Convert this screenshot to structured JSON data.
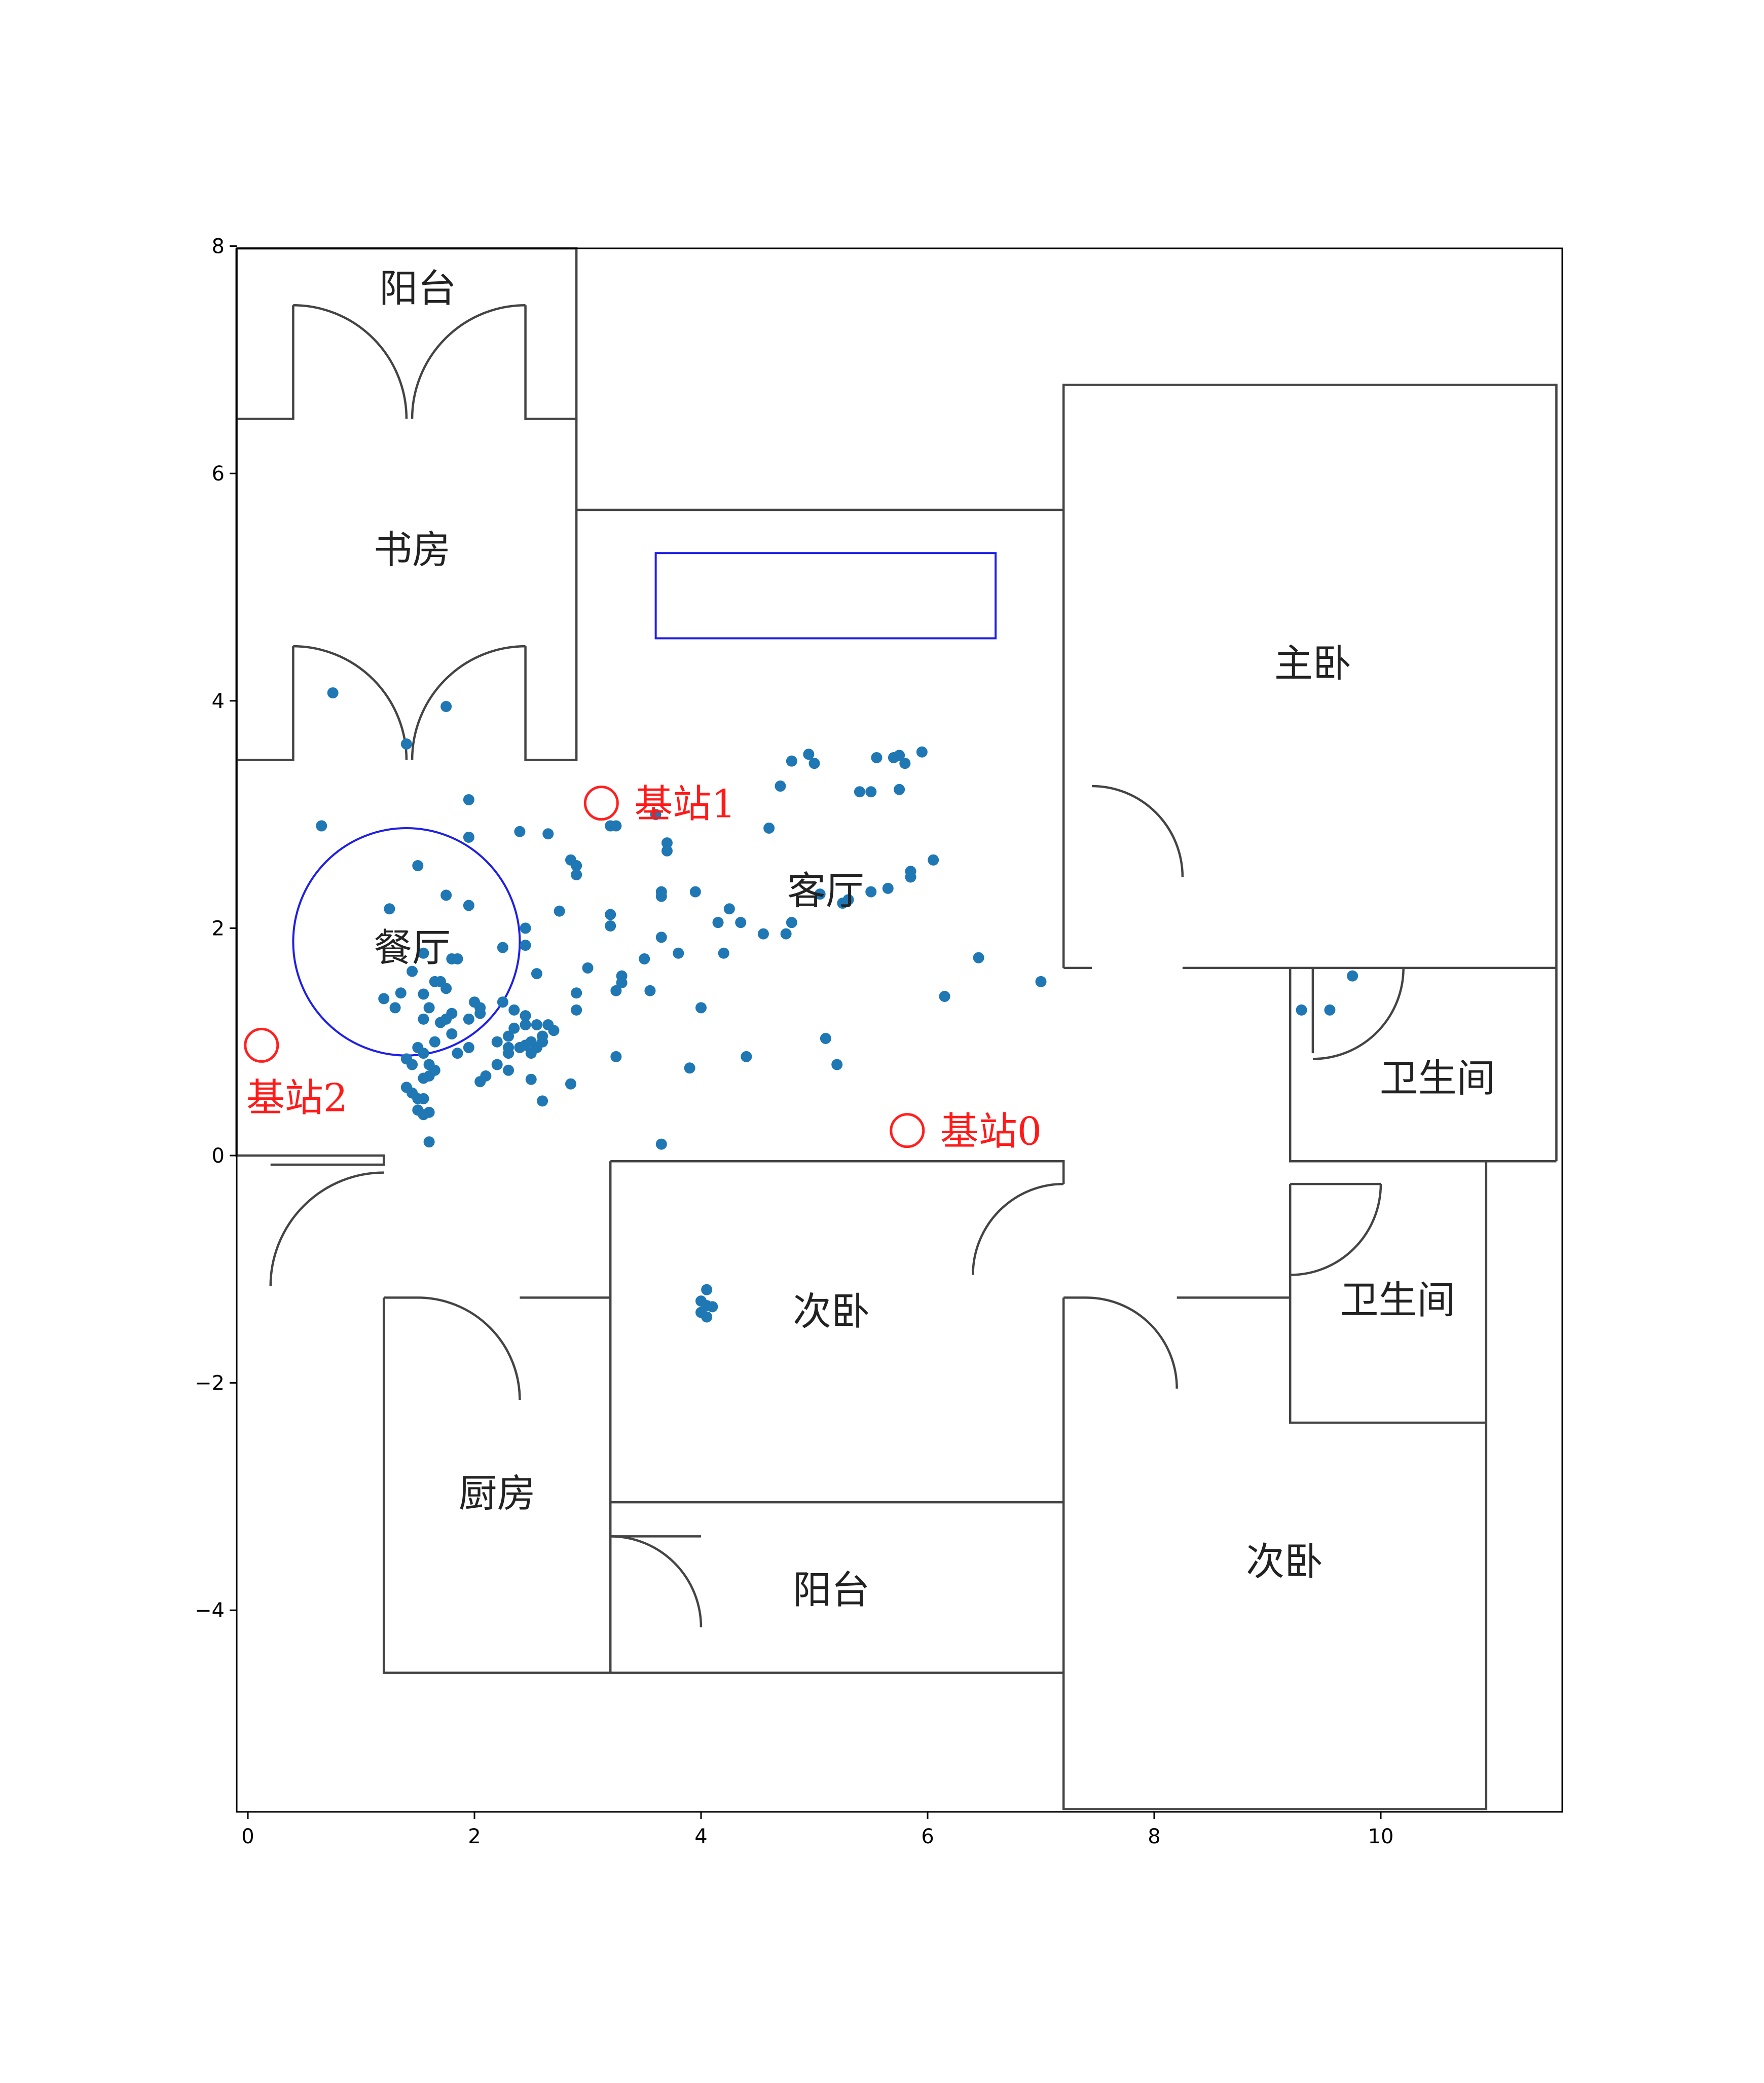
{
  "chart_data": {
    "type": "scatter",
    "title": "",
    "xlabel": "",
    "ylabel": "",
    "xlim": [
      -0.1,
      11.6
    ],
    "ylim": [
      -5.8,
      8.0
    ],
    "xticks": [
      "0",
      "2",
      "4",
      "6",
      "8",
      "10"
    ],
    "yticks": [
      "8",
      "6",
      "4",
      "2",
      "0",
      "−2",
      "−4"
    ],
    "grid": false,
    "point_color": "#1f77b4",
    "room_labels": [
      {
        "text": "阳台",
        "x": 1.5,
        "y": 7.6
      },
      {
        "text": "书房",
        "x": 1.45,
        "y": 5.3
      },
      {
        "text": "主卧",
        "x": 9.4,
        "y": 4.3
      },
      {
        "text": "客厅",
        "x": 5.1,
        "y": 2.3
      },
      {
        "text": "餐厅",
        "x": 1.45,
        "y": 1.8
      },
      {
        "text": "卫生间",
        "x": 10.5,
        "y": 0.65
      },
      {
        "text": "卫生间",
        "x": 10.15,
        "y": -1.3
      },
      {
        "text": "次卧",
        "x": 5.15,
        "y": -1.4
      },
      {
        "text": "厨房",
        "x": 2.2,
        "y": -3.0
      },
      {
        "text": "阳台",
        "x": 5.15,
        "y": -3.85
      },
      {
        "text": "次卧",
        "x": 9.15,
        "y": -3.6
      }
    ],
    "stations": [
      {
        "label": "基站0",
        "x": 5.82,
        "y": 0.22
      },
      {
        "label": "基站1",
        "x": 3.12,
        "y": 3.1
      },
      {
        "label": "基站2",
        "x": 0.12,
        "y": 0.97
      }
    ],
    "dining_circle": {
      "cx": 1.4,
      "cy": 1.88,
      "r": 1.0
    },
    "blue_rect": {
      "x0": 3.6,
      "y0": 4.55,
      "x1": 6.6,
      "y1": 5.3
    },
    "points": [
      [
        0.75,
        4.07
      ],
      [
        1.75,
        3.95
      ],
      [
        1.4,
        3.62
      ],
      [
        1.95,
        3.13
      ],
      [
        0.65,
        2.9
      ],
      [
        1.5,
        2.55
      ],
      [
        1.25,
        2.17
      ],
      [
        1.75,
        2.29
      ],
      [
        1.95,
        2.2
      ],
      [
        1.8,
        1.73
      ],
      [
        1.85,
        1.73
      ],
      [
        1.55,
        1.78
      ],
      [
        1.45,
        1.62
      ],
      [
        2.25,
        1.83
      ],
      [
        2.45,
        1.85
      ],
      [
        2.45,
        2.0
      ],
      [
        2.55,
        1.6
      ],
      [
        1.35,
        1.43
      ],
      [
        1.55,
        1.42
      ],
      [
        1.75,
        1.47
      ],
      [
        1.65,
        1.53
      ],
      [
        1.7,
        1.53
      ],
      [
        1.2,
        1.38
      ],
      [
        1.3,
        1.3
      ],
      [
        1.6,
        1.3
      ],
      [
        1.55,
        1.2
      ],
      [
        1.7,
        1.17
      ],
      [
        1.75,
        1.2
      ],
      [
        1.8,
        1.25
      ],
      [
        1.95,
        1.2
      ],
      [
        2.05,
        1.3
      ],
      [
        2.0,
        1.35
      ],
      [
        2.05,
        1.25
      ],
      [
        2.25,
        1.35
      ],
      [
        2.35,
        1.28
      ],
      [
        2.5,
        1.0
      ],
      [
        2.6,
        1.0
      ],
      [
        2.45,
        1.15
      ],
      [
        2.45,
        1.23
      ],
      [
        2.55,
        1.15
      ],
      [
        2.65,
        1.15
      ],
      [
        2.6,
        1.05
      ],
      [
        2.7,
        1.1
      ],
      [
        2.3,
        1.05
      ],
      [
        2.35,
        1.12
      ],
      [
        2.4,
        0.95
      ],
      [
        2.5,
        0.9
      ],
      [
        2.45,
        0.97
      ],
      [
        2.3,
        0.9
      ],
      [
        2.55,
        0.95
      ],
      [
        2.2,
        1.0
      ],
      [
        2.3,
        0.95
      ],
      [
        1.5,
        0.95
      ],
      [
        1.55,
        0.9
      ],
      [
        1.65,
        1.0
      ],
      [
        1.8,
        1.07
      ],
      [
        1.85,
        0.9
      ],
      [
        1.95,
        0.95
      ],
      [
        1.4,
        0.85
      ],
      [
        1.45,
        0.8
      ],
      [
        1.6,
        0.8
      ],
      [
        1.55,
        0.68
      ],
      [
        1.6,
        0.7
      ],
      [
        1.65,
        0.75
      ],
      [
        2.2,
        0.8
      ],
      [
        2.3,
        0.75
      ],
      [
        2.1,
        0.7
      ],
      [
        2.05,
        0.65
      ],
      [
        1.45,
        0.55
      ],
      [
        1.5,
        0.5
      ],
      [
        1.55,
        0.5
      ],
      [
        1.5,
        0.4
      ],
      [
        1.55,
        0.36
      ],
      [
        1.6,
        0.38
      ],
      [
        1.4,
        0.6
      ],
      [
        1.6,
        0.12
      ],
      [
        2.6,
        0.48
      ],
      [
        2.85,
        0.63
      ],
      [
        2.5,
        0.67
      ],
      [
        1.95,
        2.8
      ],
      [
        2.4,
        2.85
      ],
      [
        2.65,
        2.83
      ],
      [
        2.85,
        2.6
      ],
      [
        2.9,
        2.55
      ],
      [
        2.9,
        2.47
      ],
      [
        2.75,
        2.15
      ],
      [
        3.2,
        2.9
      ],
      [
        3.25,
        2.9
      ],
      [
        3.6,
        3.0
      ],
      [
        3.7,
        2.75
      ],
      [
        3.7,
        2.68
      ],
      [
        3.65,
        2.32
      ],
      [
        3.2,
        2.12
      ],
      [
        3.2,
        2.02
      ],
      [
        3.0,
        1.65
      ],
      [
        3.3,
        1.58
      ],
      [
        3.3,
        1.52
      ],
      [
        3.55,
        1.45
      ],
      [
        3.25,
        1.45
      ],
      [
        3.65,
        1.92
      ],
      [
        3.65,
        2.28
      ],
      [
        3.8,
        1.78
      ],
      [
        3.5,
        1.73
      ],
      [
        2.9,
        1.43
      ],
      [
        2.9,
        1.28
      ],
      [
        3.25,
        0.87
      ],
      [
        3.95,
        2.32
      ],
      [
        4.15,
        2.05
      ],
      [
        4.25,
        2.17
      ],
      [
        4.35,
        2.05
      ],
      [
        4.55,
        1.95
      ],
      [
        4.75,
        1.95
      ],
      [
        4.8,
        2.05
      ],
      [
        4.6,
        2.88
      ],
      [
        4.7,
        3.25
      ],
      [
        4.8,
        3.47
      ],
      [
        4.95,
        3.53
      ],
      [
        5.0,
        3.45
      ],
      [
        5.05,
        2.3
      ],
      [
        5.3,
        2.25
      ],
      [
        5.25,
        2.22
      ],
      [
        5.4,
        3.2
      ],
      [
        5.5,
        3.2
      ],
      [
        5.5,
        2.32
      ],
      [
        5.65,
        2.35
      ],
      [
        5.55,
        3.5
      ],
      [
        5.7,
        3.5
      ],
      [
        5.75,
        3.52
      ],
      [
        5.8,
        3.45
      ],
      [
        5.75,
        3.22
      ],
      [
        5.85,
        2.45
      ],
      [
        5.85,
        2.5
      ],
      [
        5.95,
        3.55
      ],
      [
        6.05,
        2.6
      ],
      [
        4.2,
        1.78
      ],
      [
        4.0,
        1.3
      ],
      [
        3.9,
        0.77
      ],
      [
        4.4,
        0.87
      ],
      [
        5.1,
        1.03
      ],
      [
        5.2,
        0.8
      ],
      [
        3.65,
        0.1
      ],
      [
        6.45,
        1.74
      ],
      [
        6.15,
        1.4
      ],
      [
        7.0,
        1.53
      ],
      [
        9.3,
        1.28
      ],
      [
        9.55,
        1.28
      ],
      [
        9.75,
        1.58
      ],
      [
        4.05,
        -1.18
      ],
      [
        4.0,
        -1.28
      ],
      [
        4.05,
        -1.32
      ],
      [
        4.1,
        -1.33
      ],
      [
        4.0,
        -1.38
      ],
      [
        4.05,
        -1.42
      ]
    ]
  }
}
